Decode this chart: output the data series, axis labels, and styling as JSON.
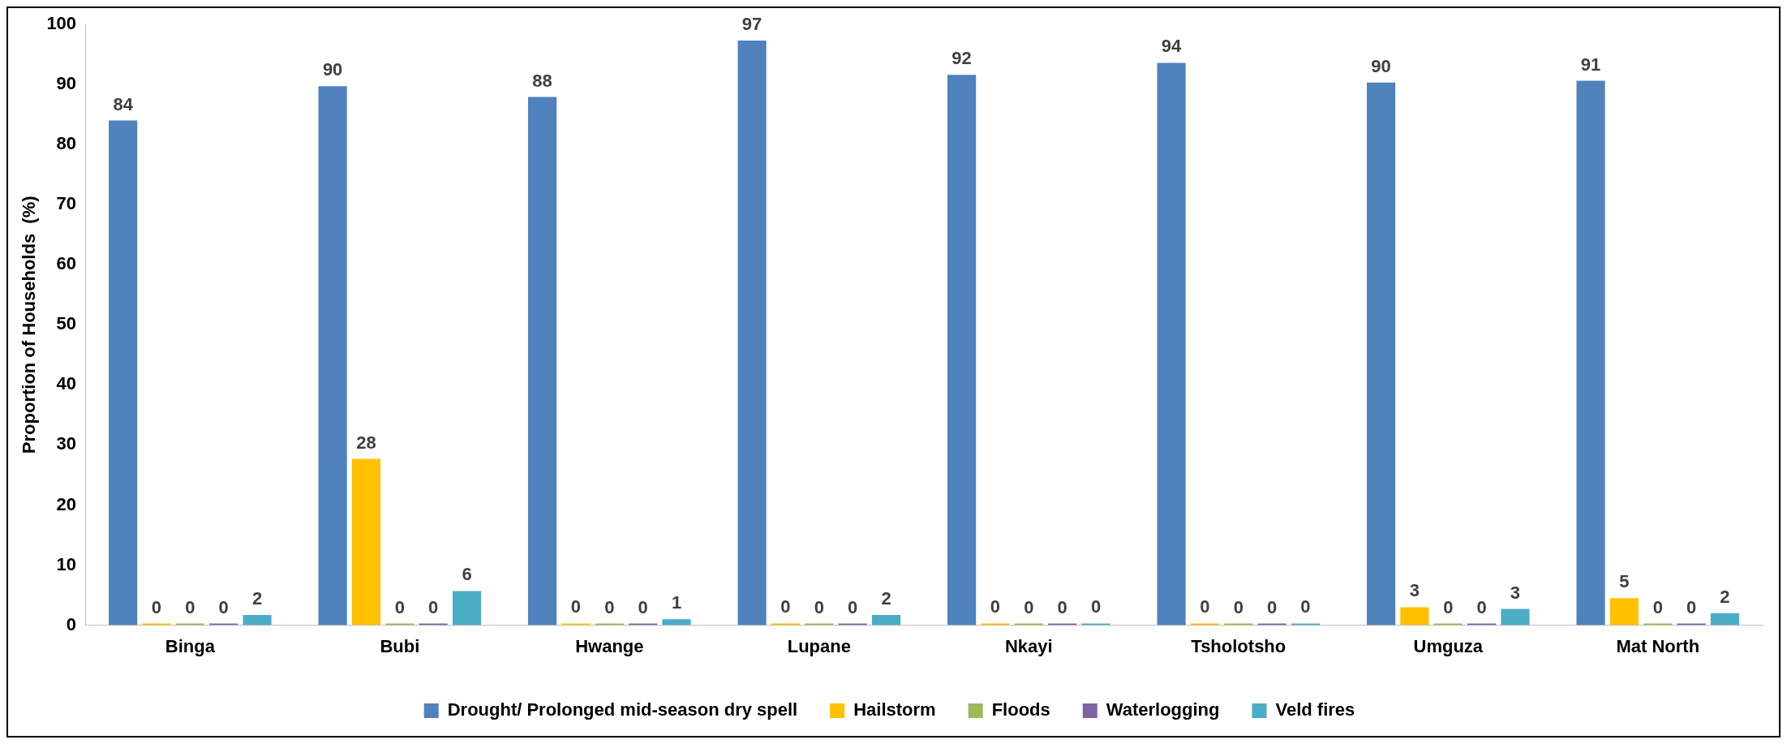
{
  "chart_data": {
    "type": "bar",
    "ylabel": "Proportion of Households  (%)",
    "categories": [
      "Binga",
      "Bubi",
      "Hwange",
      "Lupane",
      "Nkayi",
      "Tsholotsho",
      "Umguza",
      "Mat North"
    ],
    "series": [
      {
        "name": "Drought/ Prolonged mid-season dry spell",
        "color": "#4f81bd",
        "values": [
          84,
          89.7,
          87.9,
          97.3,
          91.6,
          93.6,
          90.3,
          90.6
        ],
        "value_labels": [
          "84",
          "90",
          "88",
          "97",
          "92",
          "94",
          "90",
          "91"
        ]
      },
      {
        "name": "Hailstorm",
        "color": "#ffc000",
        "values": [
          0,
          27.7,
          0.3,
          0.3,
          0.3,
          0.3,
          3,
          4.5
        ],
        "value_labels": [
          "0",
          "28",
          "0",
          "0",
          "0",
          "0",
          "3",
          "5"
        ]
      },
      {
        "name": "Floods",
        "color": "#9bbb59",
        "values": [
          0,
          0,
          0,
          0,
          0,
          0,
          0,
          0
        ],
        "value_labels": [
          "0",
          "0",
          "0",
          "0",
          "0",
          "0",
          "0",
          "0"
        ]
      },
      {
        "name": "Waterlogging",
        "color": "#8064a2",
        "values": [
          0,
          0,
          0,
          0,
          0,
          0,
          0,
          0
        ],
        "value_labels": [
          "0",
          "0",
          "0",
          "0",
          "0",
          "0",
          "0",
          "0"
        ]
      },
      {
        "name": "Veld fires",
        "color": "#4bacc6",
        "values": [
          1.7,
          5.7,
          1,
          1.7,
          0.3,
          0.3,
          2.7,
          2
        ],
        "value_labels": [
          "2",
          "6",
          "1",
          "2",
          "0",
          "0",
          "3",
          "2"
        ]
      }
    ],
    "ylim": [
      0,
      100
    ],
    "yticks": [
      0,
      10,
      20,
      30,
      40,
      50,
      60,
      70,
      80,
      90,
      100
    ],
    "legend": "bottom"
  }
}
